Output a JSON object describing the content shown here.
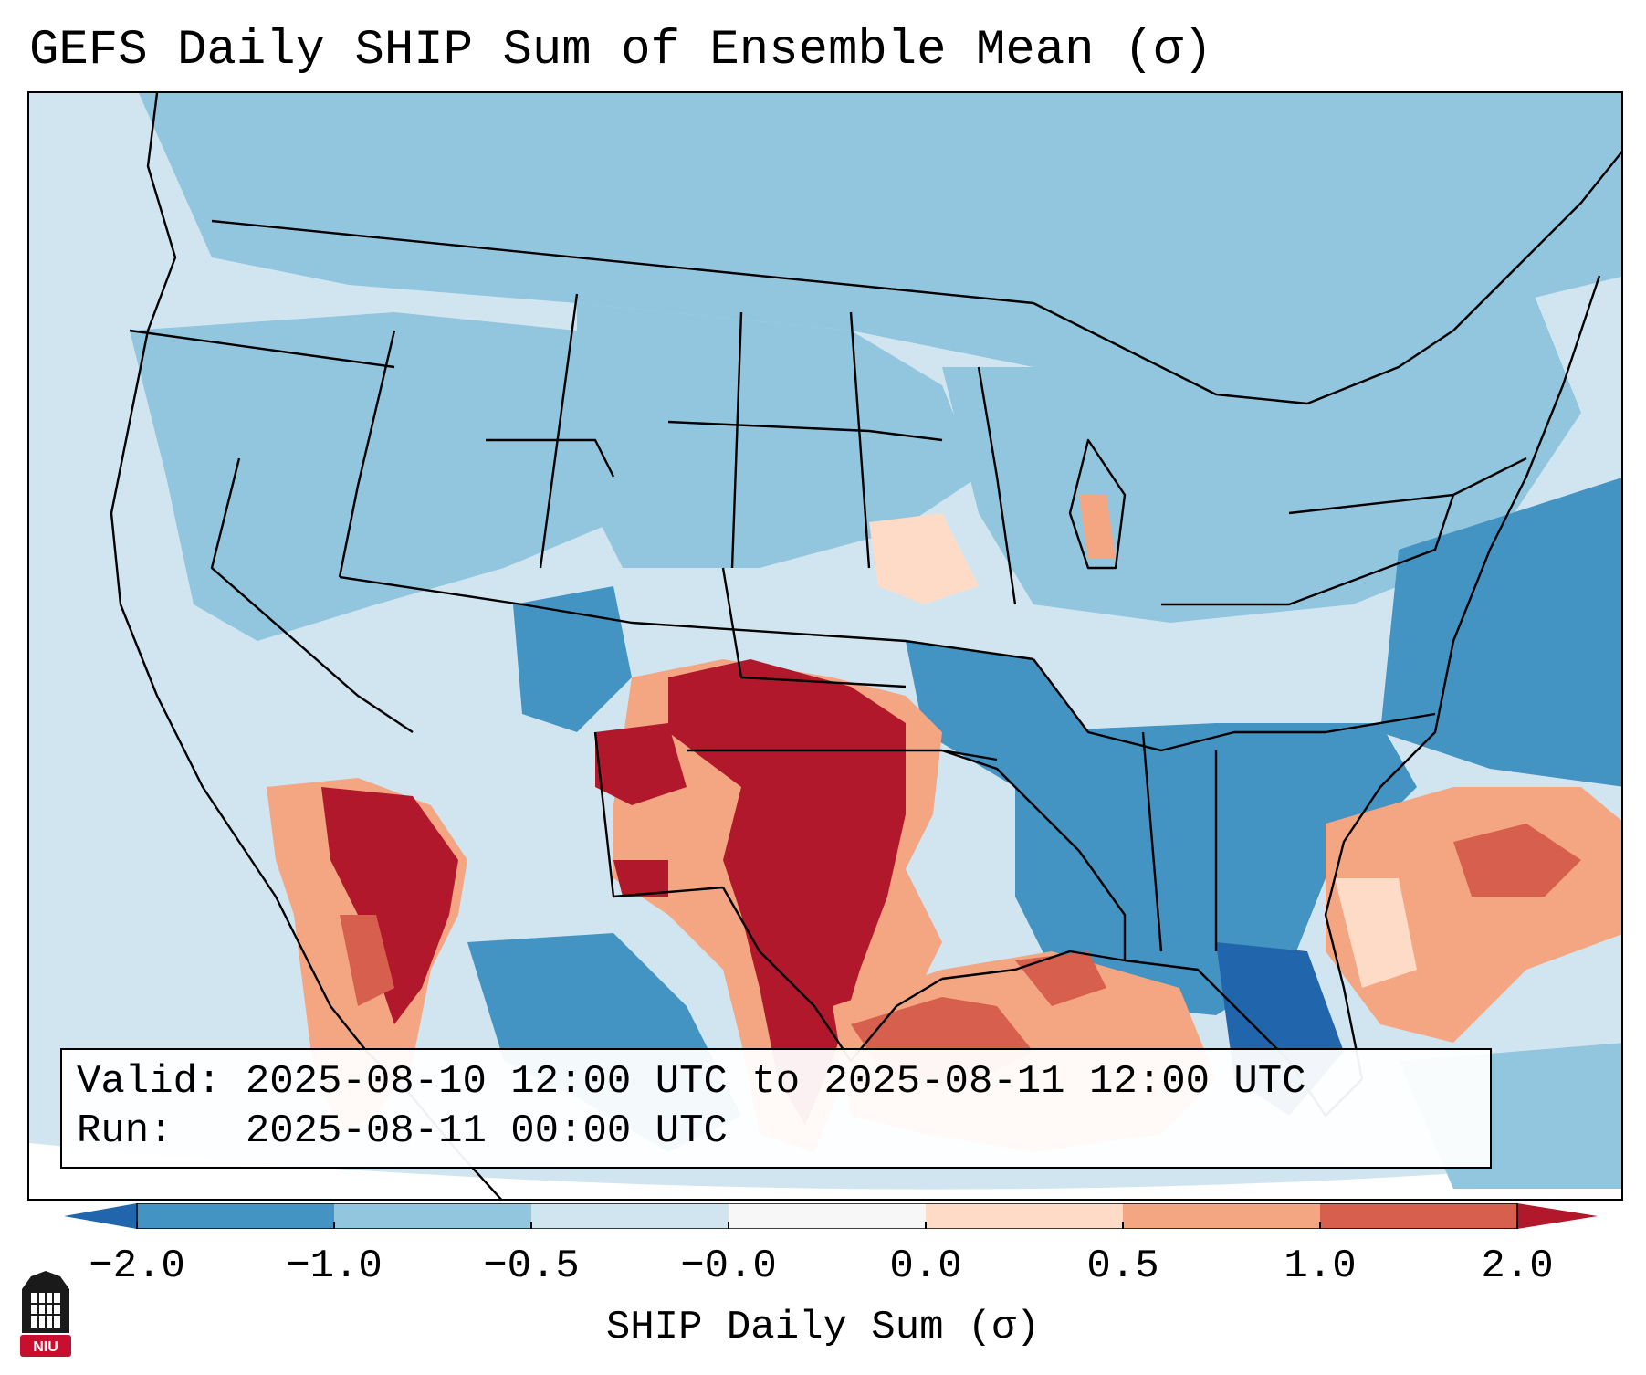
{
  "title": "GEFS Daily SHIP Sum of Ensemble Mean (σ)",
  "valid_line": "Valid: 2025-08-10 12:00 UTC to 2025-08-11 12:00 UTC",
  "run_line": "Run:   2025-08-11 00:00 UTC",
  "colorbar": {
    "label": "SHIP Daily Sum (σ)",
    "ticks": [
      "−2.0",
      "−1.0",
      "−0.5",
      "−0.0",
      "0.0",
      "0.5",
      "1.0",
      "2.0"
    ],
    "colors": [
      "#4393c3",
      "#92c5de",
      "#d1e5f0",
      "#f7f7f7",
      "#fddbc7",
      "#f4a582",
      "#d6604d"
    ],
    "under_color": "#2166ac",
    "over_color": "#b2182b"
  },
  "logo_text": "NIU",
  "colors": {
    "bg": "#d1e5f0",
    "very_low": "#2166ac",
    "low": "#4393c3",
    "mid_low": "#92c5de",
    "neutral": "#f7f7f7",
    "mid_high": "#fddbc7",
    "high": "#f4a582",
    "higher": "#d6604d",
    "max": "#b2182b"
  }
}
